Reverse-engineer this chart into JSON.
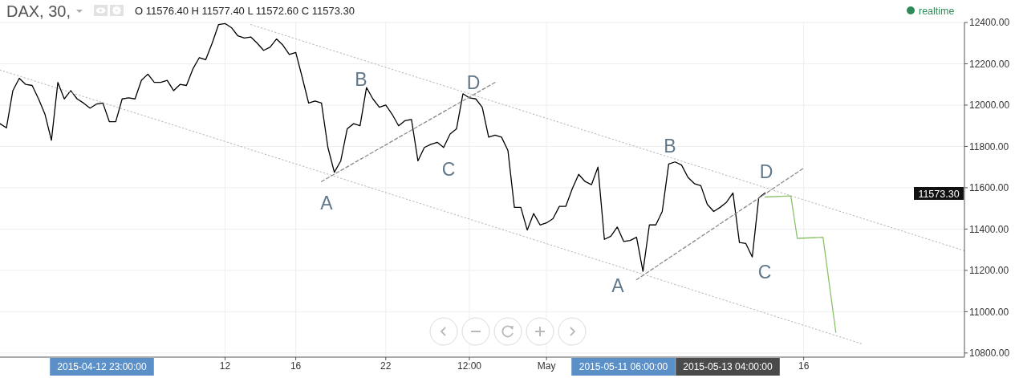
{
  "chart_data": {
    "type": "line",
    "title": "DAX, 30,",
    "subtitle": "O 11576.40 H 11577.40 L 11572.60 C 11573.30",
    "categories": [
      null,
      null,
      null,
      null,
      null,
      null,
      null,
      null,
      null,
      null,
      null,
      null,
      null,
      null,
      null,
      null,
      null,
      null,
      null,
      null,
      null,
      null,
      null,
      null,
      null,
      null,
      null,
      null,
      null,
      null,
      null,
      null,
      null,
      null,
      null,
      "12",
      null,
      null,
      null,
      null,
      null,
      null,
      null,
      null,
      null,
      null,
      "16",
      null,
      null,
      null,
      null,
      null,
      null,
      null,
      null,
      null,
      null,
      null,
      null,
      null,
      "22",
      null,
      null,
      null,
      null,
      null,
      null,
      null,
      null,
      null,
      null,
      null,
      null,
      "12:00",
      null,
      null,
      null,
      null,
      null,
      null,
      null,
      null,
      null,
      null,
      null,
      "May",
      null,
      null,
      null,
      null,
      null,
      null,
      null,
      null,
      null,
      null,
      null,
      null,
      null,
      null,
      null,
      null,
      null,
      null,
      null,
      null,
      null,
      null,
      null,
      null,
      null,
      null,
      null,
      null,
      null,
      null,
      null,
      null,
      null,
      null,
      null,
      null,
      null,
      null,
      null,
      "16",
      null,
      null,
      null,
      null,
      null,
      null,
      null,
      null,
      null,
      null,
      null,
      null,
      null,
      null,
      null,
      null,
      null,
      null,
      null,
      null,
      null,
      null,
      null,
      null,
      null
    ],
    "series": [
      {
        "color": "#000000",
        "line_style": "solid",
        "values": [
          11910,
          11890,
          12070,
          12130,
          12100,
          12095,
          12030,
          11955,
          11830,
          12110,
          12030,
          12070,
          12030,
          12010,
          11985,
          12005,
          12010,
          11920,
          11920,
          12030,
          12035,
          12030,
          12120,
          12150,
          12110,
          12110,
          12120,
          12070,
          12100,
          12095,
          12175,
          12230,
          12220,
          12300,
          12390,
          12395,
          12375,
          12335,
          12325,
          12330,
          12300,
          12265,
          12280,
          12320,
          12290,
          12245,
          12255,
          12135,
          12010,
          12020,
          12010,
          11795,
          11675,
          11730,
          11885,
          11910,
          11900,
          12085,
          12030,
          11990,
          12000,
          11955,
          11900,
          11925,
          11930,
          11730,
          11795,
          11810,
          11820,
          11795,
          11860,
          11885,
          12055,
          12035,
          12030,
          11990,
          11845,
          11855,
          11845,
          11780,
          11505,
          11505,
          11395,
          11475,
          11420,
          11430,
          11450,
          11510,
          11510,
          11595,
          11665,
          11630,
          11615,
          11700,
          11350,
          11365,
          11410,
          11340,
          11345,
          11360,
          11195,
          11420,
          11420,
          11485,
          11715,
          11725,
          11710,
          11650,
          11620,
          11610,
          11520,
          11485,
          11505,
          11530,
          11575,
          11335,
          11330,
          11265,
          11550,
          11575,
          null,
          null,
          null,
          null,
          null,
          null,
          null,
          null,
          null,
          null,
          null,
          null,
          null,
          null,
          null,
          null,
          null,
          null,
          null,
          null,
          null,
          null,
          null,
          null,
          null,
          null,
          null,
          null,
          null,
          null,
          null
        ]
      },
      {
        "color": "#b3b3b3",
        "line_style": "dotted",
        "values": [
          null,
          null,
          null,
          null,
          null,
          null,
          null,
          null,
          null,
          null,
          null,
          null,
          null,
          null,
          null,
          null,
          null,
          null,
          null,
          null,
          null,
          null,
          null,
          null,
          null,
          null,
          null,
          null,
          null,
          null,
          null,
          null,
          null,
          null,
          null,
          null,
          null,
          null,
          null,
          12390,
          null,
          null,
          null,
          null,
          null,
          null,
          null,
          null,
          null,
          null,
          null,
          null,
          null,
          null,
          null,
          null,
          null,
          null,
          null,
          null,
          null,
          null,
          null,
          null,
          null,
          null,
          null,
          null,
          null,
          null,
          null,
          null,
          null,
          null,
          null,
          null,
          null,
          null,
          null,
          null,
          null,
          null,
          null,
          null,
          null,
          null,
          null,
          null,
          null,
          null,
          null,
          null,
          null,
          null,
          null,
          null,
          null,
          null,
          null,
          null,
          null,
          null,
          null,
          null,
          null,
          null,
          null,
          null,
          null,
          null,
          null,
          null,
          null,
          null,
          null,
          null,
          null,
          null,
          null,
          null,
          null,
          null,
          null,
          null,
          null,
          null,
          null,
          null,
          null,
          null,
          null,
          null,
          null,
          null,
          null,
          null,
          null,
          null,
          null,
          null,
          null,
          null,
          null,
          null,
          null,
          null,
          null,
          null,
          null,
          null,
          11295
        ]
      },
      {
        "color": "#b3b3b3",
        "line_style": "dotted",
        "values": [
          12170,
          null,
          null,
          null,
          null,
          null,
          null,
          null,
          null,
          null,
          null,
          null,
          null,
          null,
          null,
          null,
          null,
          null,
          null,
          null,
          null,
          null,
          null,
          null,
          null,
          null,
          null,
          null,
          null,
          null,
          null,
          null,
          null,
          null,
          null,
          null,
          null,
          null,
          null,
          null,
          null,
          null,
          null,
          null,
          null,
          null,
          null,
          null,
          null,
          null,
          null,
          null,
          null,
          null,
          null,
          null,
          null,
          null,
          null,
          null,
          null,
          null,
          null,
          null,
          null,
          null,
          null,
          null,
          null,
          null,
          null,
          null,
          null,
          null,
          null,
          null,
          null,
          null,
          null,
          null,
          null,
          null,
          null,
          null,
          null,
          null,
          null,
          null,
          null,
          null,
          null,
          null,
          null,
          null,
          null,
          null,
          null,
          null,
          null,
          null,
          null,
          null,
          null,
          null,
          null,
          null,
          null,
          null,
          null,
          null,
          null,
          null,
          null,
          null,
          null,
          null,
          null,
          null,
          null,
          null,
          null,
          null,
          null,
          null,
          null,
          null,
          null,
          null,
          null,
          null,
          null,
          null,
          null,
          null,
          10845,
          null,
          null,
          null,
          null,
          null,
          null,
          null,
          null,
          null,
          null,
          null,
          null,
          null,
          null,
          null,
          null
        ]
      },
      {
        "color": "#8a8a8a",
        "line_style": "dashed",
        "values": [
          null,
          null,
          null,
          null,
          null,
          null,
          null,
          null,
          null,
          null,
          null,
          null,
          null,
          null,
          null,
          null,
          null,
          null,
          null,
          null,
          null,
          null,
          null,
          null,
          null,
          null,
          null,
          null,
          null,
          null,
          null,
          null,
          null,
          null,
          null,
          null,
          null,
          null,
          null,
          null,
          null,
          null,
          null,
          null,
          null,
          null,
          null,
          null,
          null,
          null,
          11630,
          null,
          null,
          null,
          null,
          null,
          null,
          null,
          null,
          null,
          null,
          null,
          null,
          null,
          null,
          null,
          null,
          null,
          null,
          null,
          null,
          null,
          null,
          null,
          null,
          null,
          null,
          12110,
          null,
          null,
          null,
          null,
          null,
          null,
          null,
          null,
          null,
          null,
          null,
          null,
          null,
          null,
          null,
          null,
          null,
          null,
          null,
          null,
          null,
          null,
          null,
          null,
          null,
          null,
          null,
          null,
          null,
          null,
          null,
          null,
          null,
          null,
          null,
          null,
          null,
          null,
          null,
          null,
          null,
          null,
          null,
          null,
          null,
          null,
          null,
          null,
          null,
          null,
          null,
          null,
          null,
          null,
          null,
          null,
          null,
          null,
          null,
          null,
          null,
          null,
          null,
          null,
          null,
          null,
          null,
          null,
          null,
          null,
          null,
          null,
          null
        ]
      },
      {
        "color": "#8a8a8a",
        "line_style": "dashed",
        "values": [
          null,
          null,
          null,
          null,
          null,
          null,
          null,
          null,
          null,
          null,
          null,
          null,
          null,
          null,
          null,
          null,
          null,
          null,
          null,
          null,
          null,
          null,
          null,
          null,
          null,
          null,
          null,
          null,
          null,
          null,
          null,
          null,
          null,
          null,
          null,
          null,
          null,
          null,
          null,
          null,
          null,
          null,
          null,
          null,
          null,
          null,
          null,
          null,
          null,
          null,
          null,
          null,
          null,
          null,
          null,
          null,
          null,
          null,
          null,
          null,
          null,
          null,
          null,
          null,
          null,
          null,
          null,
          null,
          null,
          null,
          null,
          null,
          null,
          null,
          null,
          null,
          null,
          null,
          null,
          null,
          null,
          null,
          null,
          null,
          null,
          null,
          null,
          null,
          null,
          null,
          null,
          null,
          null,
          null,
          null,
          null,
          null,
          null,
          null,
          11155,
          null,
          null,
          null,
          null,
          null,
          null,
          null,
          null,
          null,
          null,
          null,
          null,
          null,
          null,
          null,
          null,
          null,
          null,
          null,
          null,
          null,
          null,
          null,
          null,
          null,
          11695,
          null,
          null,
          null,
          null,
          null,
          null,
          null,
          null,
          null,
          null,
          null,
          null,
          null,
          null,
          null,
          null,
          null,
          null,
          null,
          null,
          null,
          null,
          null,
          null,
          null
        ]
      },
      {
        "color": "#8cc26a",
        "line_style": "solid",
        "values": [
          null,
          null,
          null,
          null,
          null,
          null,
          null,
          null,
          null,
          null,
          null,
          null,
          null,
          null,
          null,
          null,
          null,
          null,
          null,
          null,
          null,
          null,
          null,
          null,
          null,
          null,
          null,
          null,
          null,
          null,
          null,
          null,
          null,
          null,
          null,
          null,
          null,
          null,
          null,
          null,
          null,
          null,
          null,
          null,
          null,
          null,
          null,
          null,
          null,
          null,
          null,
          null,
          null,
          null,
          null,
          null,
          null,
          null,
          null,
          null,
          null,
          null,
          null,
          null,
          null,
          null,
          null,
          null,
          null,
          null,
          null,
          null,
          null,
          null,
          null,
          null,
          null,
          null,
          null,
          null,
          null,
          null,
          null,
          null,
          null,
          null,
          null,
          null,
          null,
          null,
          null,
          null,
          null,
          null,
          null,
          null,
          null,
          null,
          null,
          null,
          null,
          null,
          null,
          null,
          null,
          null,
          null,
          null,
          null,
          null,
          null,
          null,
          null,
          null,
          null,
          null,
          null,
          null,
          null,
          11555,
          null,
          null,
          null,
          11560,
          11355,
          null,
          null,
          null,
          11360,
          null,
          10900,
          null,
          null,
          null,
          null,
          null,
          null,
          null,
          null,
          null,
          null,
          null,
          null,
          null,
          null,
          null,
          null,
          null,
          null,
          null,
          null
        ]
      }
    ],
    "ylim": [
      10780,
      12400
    ],
    "yticks": [
      {
        "value": 10800,
        "label": "10800.00"
      },
      {
        "value": 11000,
        "label": "11000.00"
      },
      {
        "value": 11200,
        "label": "11200.00"
      },
      {
        "value": 11400,
        "label": "11400.00"
      },
      {
        "value": 11600,
        "label": "11600.00"
      },
      {
        "value": 11800,
        "label": "11800.00"
      },
      {
        "value": 12000,
        "label": "12000.00"
      },
      {
        "value": 12200,
        "label": "12200.00"
      },
      {
        "value": 12400,
        "label": "12400.00"
      }
    ],
    "grid": true,
    "annotations": [
      "realtime",
      "11573.30",
      "2015-04-12 23:00:00",
      "2015-05-11 06:00:00",
      "2015-05-13 04:00:00",
      "A",
      "B",
      "C",
      "D",
      "A",
      "B",
      "C",
      "D"
    ]
  }
}
